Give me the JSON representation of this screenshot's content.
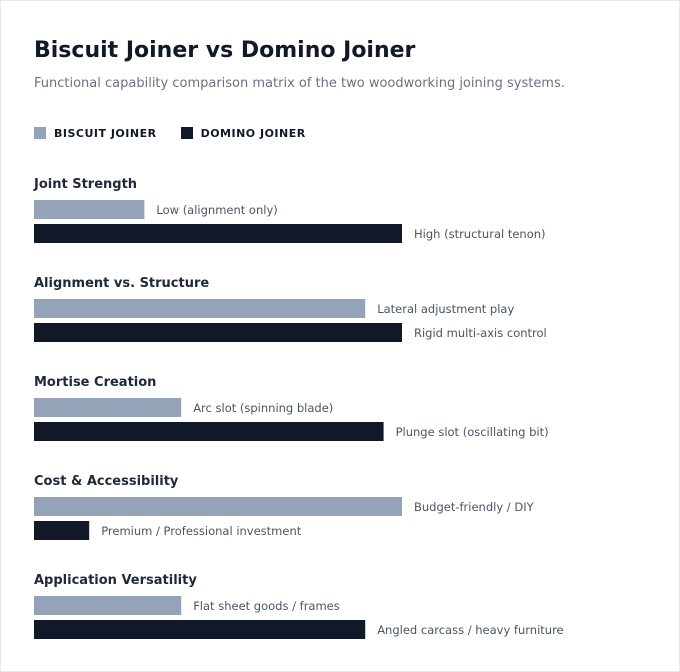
{
  "title": "Biscuit Joiner vs Domino Joiner",
  "subtitle": "Functional capability comparison matrix of the two woodworking joining systems.",
  "colors": {
    "biscuit": "#94a3b8",
    "domino": "#111827"
  },
  "legend": [
    {
      "key": "biscuit",
      "label": "BISCUIT JOINER"
    },
    {
      "key": "domino",
      "label": "DOMINO JOINER"
    }
  ],
  "chart_data": {
    "type": "bar",
    "orientation": "horizontal",
    "xlim": [
      0,
      100
    ],
    "grid": false,
    "legend_position": "top-left",
    "series": [
      {
        "name": "BISCUIT JOINER",
        "key": "biscuit",
        "values": [
          30,
          90,
          40,
          100,
          40
        ]
      },
      {
        "name": "DOMINO JOINER",
        "key": "domino",
        "values": [
          100,
          100,
          95,
          15,
          90
        ]
      }
    ],
    "categories": [
      "Joint Strength",
      "Alignment vs. Structure",
      "Mortise Creation",
      "Cost & Accessibility",
      "Application Versatility"
    ],
    "annotations": [
      [
        "Low (alignment only)",
        "High (structural tenon)"
      ],
      [
        "Lateral adjustment play",
        "Rigid multi-axis control"
      ],
      [
        "Arc slot (spinning blade)",
        "Plunge slot (oscillating bit)"
      ],
      [
        "Budget-friendly / DIY",
        "Premium / Professional investment"
      ],
      [
        "Flat sheet goods / frames",
        "Angled carcass / heavy furniture"
      ]
    ]
  }
}
